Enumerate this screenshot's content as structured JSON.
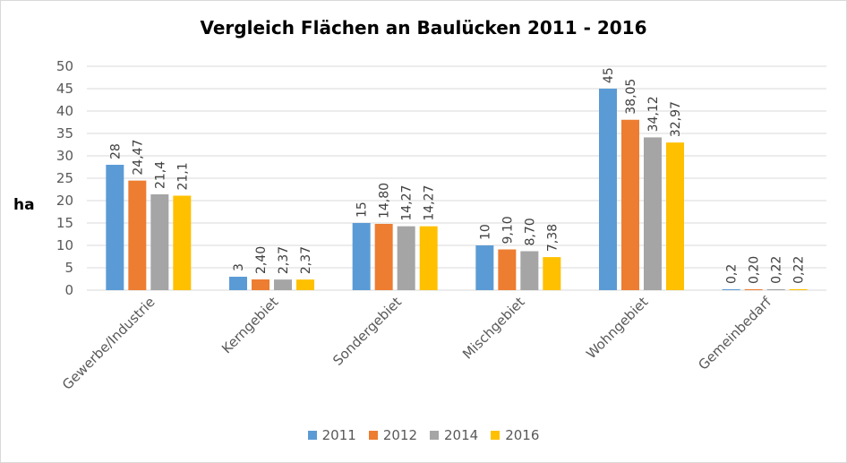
{
  "chart_data": {
    "type": "bar",
    "title": "Vergleich Flächen an Baulücken 2011 - 2016",
    "ylabel": "ha",
    "xlabel": "",
    "ylim": [
      0,
      50
    ],
    "yticks": [
      0,
      5,
      10,
      15,
      20,
      25,
      30,
      35,
      40,
      45,
      50
    ],
    "grid": true,
    "legend_position": "bottom",
    "categories": [
      "Gewerbe/Industrie",
      "Kerngebiet",
      "Sondergebiet",
      "Mischgebiet",
      "Wohngebiet",
      "Gemeinbedarf"
    ],
    "series": [
      {
        "name": "2011",
        "color": "#5b9bd5",
        "values": [
          28,
          3,
          15,
          10,
          45,
          0.2
        ],
        "labels": [
          "28",
          "3",
          "15",
          "10",
          "45",
          "0,2"
        ]
      },
      {
        "name": "2012",
        "color": "#ed7d31",
        "values": [
          24.47,
          2.4,
          14.8,
          9.1,
          38.05,
          0.2
        ],
        "labels": [
          "24,47",
          "2,40",
          "14,80",
          "9,10",
          "38,05",
          "0,20"
        ]
      },
      {
        "name": "2014",
        "color": "#a5a5a5",
        "values": [
          21.4,
          2.37,
          14.27,
          8.7,
          34.12,
          0.22
        ],
        "labels": [
          "21,4",
          "2,37",
          "14,27",
          "8,70",
          "34,12",
          "0,22"
        ]
      },
      {
        "name": "2016",
        "color": "#ffc000",
        "values": [
          21.1,
          2.37,
          14.27,
          7.38,
          32.97,
          0.22
        ],
        "labels": [
          "21,1",
          "2,37",
          "14,27",
          "7,38",
          "32,97",
          "0,22"
        ]
      }
    ]
  }
}
